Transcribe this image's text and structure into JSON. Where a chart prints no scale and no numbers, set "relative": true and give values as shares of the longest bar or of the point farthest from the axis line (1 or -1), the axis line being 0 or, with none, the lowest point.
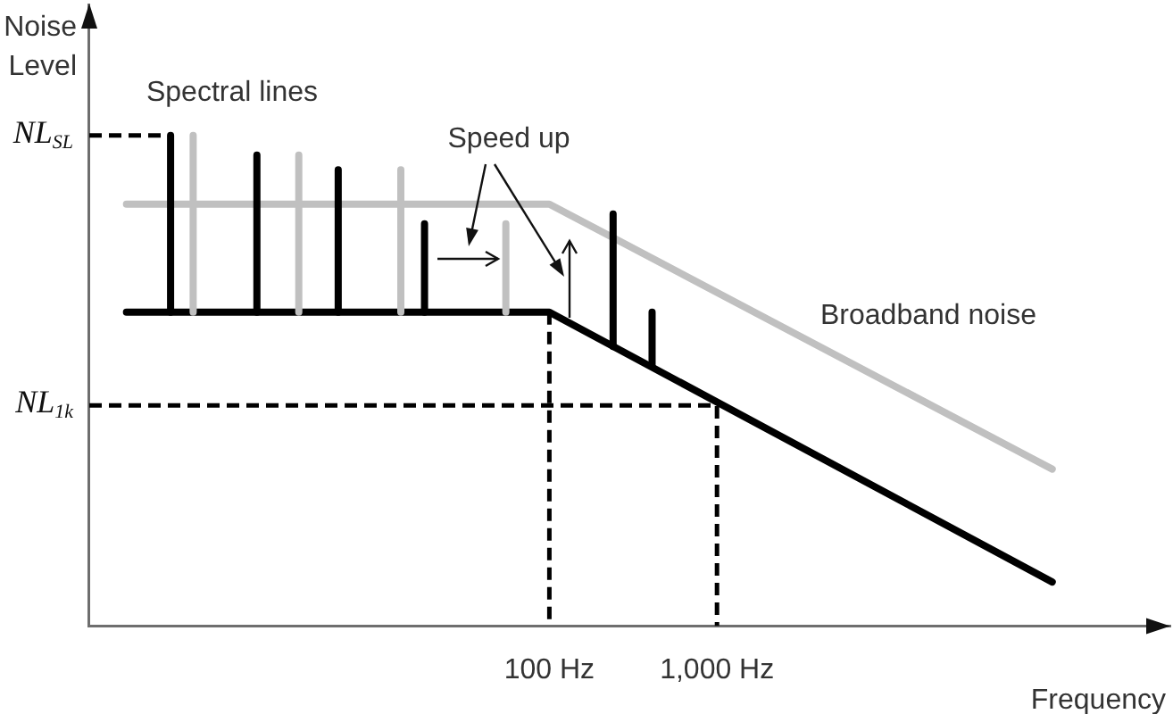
{
  "chart_data": {
    "type": "line",
    "relative": true,
    "log": "x",
    "marker": "none",
    "xlabel": "Frequency",
    "ylabel": "Noise Level",
    "xlim": [
      0.18,
      500000
    ],
    "xticks": [
      {
        "value": 100,
        "label": "100 Hz"
      },
      {
        "value": 1000,
        "label": "1,000 Hz"
      }
    ],
    "annotations": [
      "Spectral lines",
      "Speed up",
      "Broadband noise",
      {
        "text": "NL$_{SL}$",
        "x": 0.18,
        "y": 1
      },
      {
        "text": "NL$_{1k}$",
        "x": 0.18,
        "y": 0.45
      }
    ],
    "series": [
      {
        "color": "#c0c0c0",
        "x": [
          0.3,
          100,
          100000
        ],
        "values": [
          0.86,
          0.86,
          0.32
        ]
      },
      {
        "color": "#000000",
        "x": [
          0.3,
          100,
          100000
        ],
        "values": [
          0.64,
          0.64,
          0.09
        ]
      },
      {
        "color": "#000000",
        "line_style": "dashed",
        "x": [
          0.18,
          0.55
        ],
        "values": [
          1,
          1
        ]
      },
      {
        "color": "#000000",
        "line_style": "dashed",
        "x": [
          0.18,
          1000,
          1000
        ],
        "values": [
          0.45,
          0.45,
          0
        ]
      },
      {
        "color": "#000000",
        "line_style": "dashed",
        "x": [
          100,
          100
        ],
        "values": [
          0.64,
          0
        ]
      },
      {
        "color": "#c0c0c0",
        "x": [
          0.75,
          0.75,
          null,
          3.2,
          3.2,
          null,
          13,
          13,
          null,
          55,
          55
        ],
        "values": [
          0.64,
          1,
          null,
          0.64,
          0.96,
          null,
          0.64,
          0.93,
          null,
          0.64,
          0.82
        ]
      },
      {
        "color": "#000000",
        "x": [
          0.55,
          0.55,
          null,
          1.8,
          1.8,
          null,
          5.5,
          5.5,
          null,
          18,
          18,
          null,
          240,
          240,
          null,
          410,
          410
        ],
        "values": [
          0.64,
          1,
          null,
          0.64,
          0.96,
          null,
          0.64,
          0.93,
          null,
          0.64,
          0.82,
          null,
          0.57,
          0.84,
          null,
          0.53,
          0.64
        ]
      }
    ]
  }
}
